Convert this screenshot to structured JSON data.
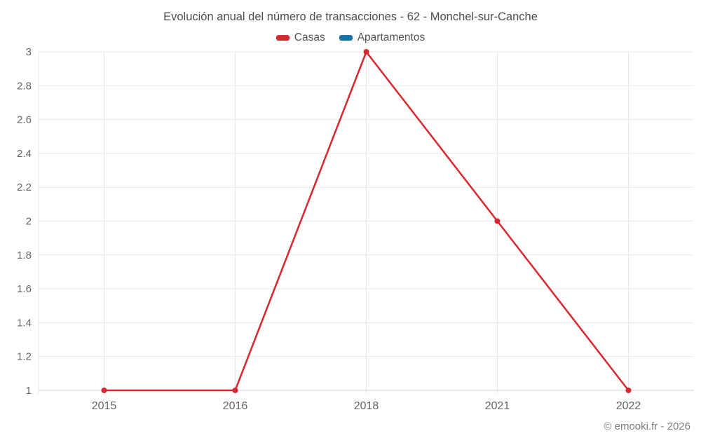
{
  "chart": {
    "title": "Evolución anual del número de transacciones - 62 - Monchel-sur-Canche"
  },
  "footer": {
    "copyright": "© emooki.fr - 2026"
  },
  "colors": {
    "casas_red": "#d7282f",
    "apartamentos_blue": "#1573a6",
    "gridline": "#e9e9e9",
    "axis_line": "#cfcfcf",
    "tick_text": "#666666"
  },
  "chart_data": {
    "type": "line",
    "title": "Evolución anual del número de transacciones - 62 - Monchel-sur-Canche",
    "categories": [
      "2015",
      "2016",
      "2018",
      "2021",
      "2022"
    ],
    "series": [
      {
        "name": "Casas",
        "color": "#d7282f",
        "values": [
          1,
          1,
          3,
          2,
          1
        ]
      },
      {
        "name": "Apartamentos",
        "color": "#1573a6",
        "values": []
      }
    ],
    "xlabel": "",
    "ylabel": "",
    "ylim": [
      1,
      3
    ],
    "ytick_step": 0.2,
    "yticks": [
      "1",
      "1.2",
      "1.4",
      "1.6",
      "1.8",
      "2",
      "2.2",
      "2.4",
      "2.6",
      "2.8",
      "3"
    ],
    "grid": true,
    "legend_position": "top",
    "marker_radius": 4,
    "line_width": 2.5
  }
}
